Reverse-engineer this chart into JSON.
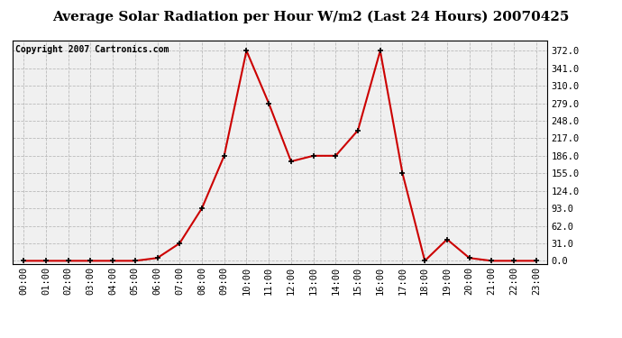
{
  "title": "Average Solar Radiation per Hour W/m2 (Last 24 Hours) 20070425",
  "copyright": "Copyright 2007 Cartronics.com",
  "x_labels": [
    "00:00",
    "01:00",
    "02:00",
    "03:00",
    "04:00",
    "05:00",
    "06:00",
    "07:00",
    "08:00",
    "09:00",
    "10:00",
    "11:00",
    "12:00",
    "13:00",
    "14:00",
    "15:00",
    "16:00",
    "17:00",
    "18:00",
    "19:00",
    "20:00",
    "21:00",
    "22:00",
    "23:00"
  ],
  "y_values": [
    0,
    0,
    0,
    0,
    0,
    0,
    5,
    31,
    93,
    186,
    372,
    279,
    176,
    186,
    186,
    231,
    372,
    155,
    0,
    38,
    5,
    0,
    0,
    0
  ],
  "y_ticks": [
    0.0,
    31.0,
    62.0,
    93.0,
    124.0,
    155.0,
    186.0,
    217.0,
    248.0,
    279.0,
    310.0,
    341.0,
    372.0
  ],
  "line_color": "#cc0000",
  "marker_color": "#000000",
  "plot_bg_color": "#f0f0f0",
  "outer_bg_color": "#ffffff",
  "grid_color": "#bbbbbb",
  "title_fontsize": 11,
  "copyright_fontsize": 7,
  "tick_fontsize": 7.5,
  "ylabel_fontsize": 7.5,
  "ylim": [
    -5,
    390
  ]
}
